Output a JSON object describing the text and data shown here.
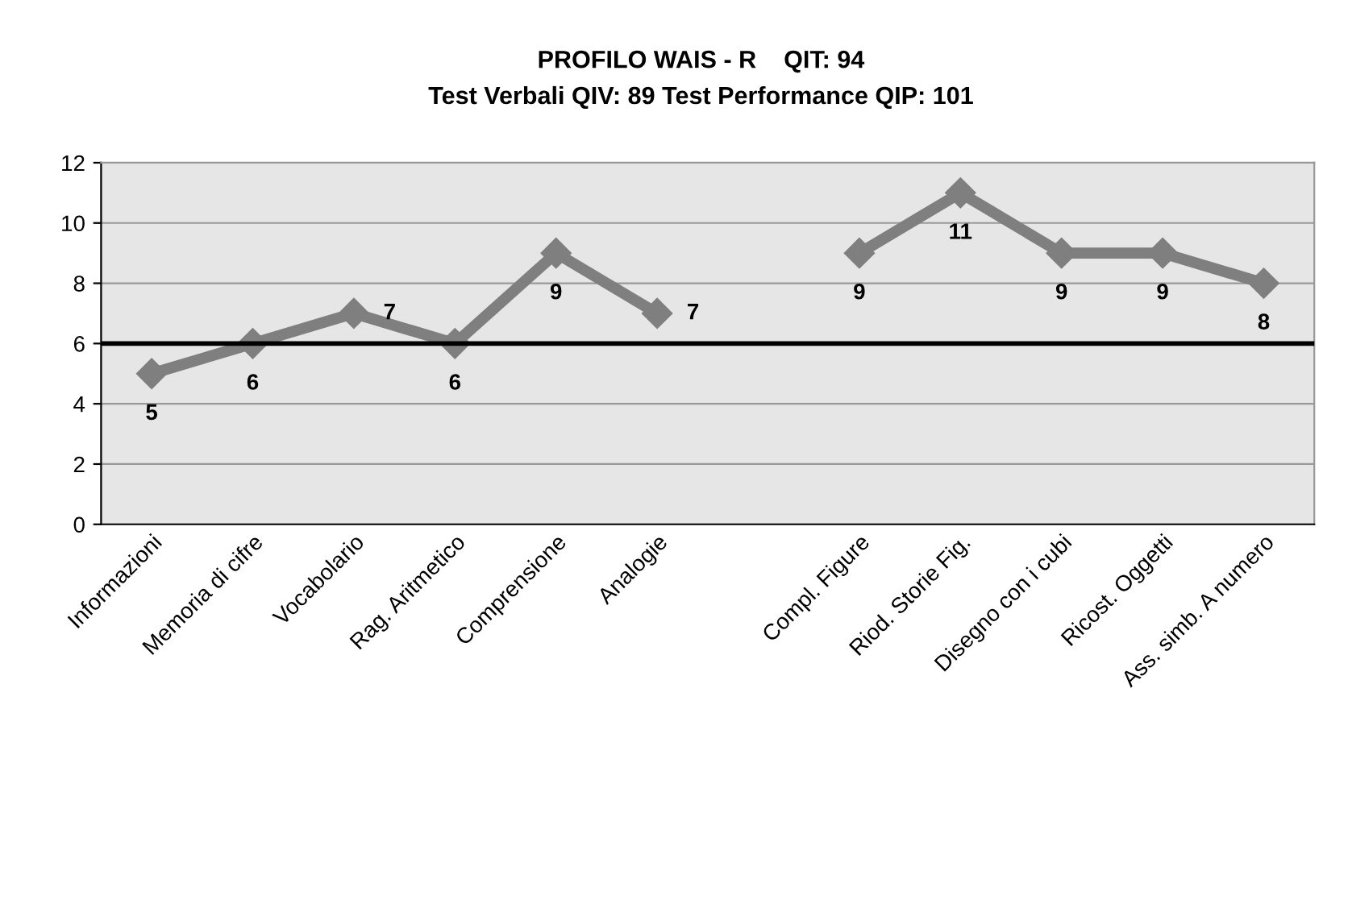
{
  "chart_data": {
    "type": "line",
    "title": "PROFILO WAIS - R    QIT: 94",
    "subtitle": "Test Verbali QIV: 89 Test Performance QIP: 101",
    "categories": [
      "Informazioni",
      "Memoria di cifre",
      "Vocabolario",
      "Rag. Aritmetico",
      "Comprensione",
      "Analogie",
      null,
      "Compl. Figure",
      "Riod. Storie Fig.",
      "Disegno con i cubi",
      "Ricost. Oggetti",
      "Ass. simb. A numero"
    ],
    "series": [
      {
        "color": "#7f7f7f",
        "values": [
          5,
          6,
          7,
          6,
          9,
          7,
          null,
          9,
          11,
          9,
          9,
          8
        ]
      }
    ],
    "ylim": [
      0,
      12
    ],
    "yticks": [
      0,
      2,
      4,
      6,
      8,
      10,
      12
    ],
    "grid": "y",
    "marker": "diamond",
    "line_style": "solid",
    "data_labels": true,
    "ref_lines": [
      {
        "axis": "y",
        "value": 6,
        "color": "#000000"
      }
    ]
  }
}
